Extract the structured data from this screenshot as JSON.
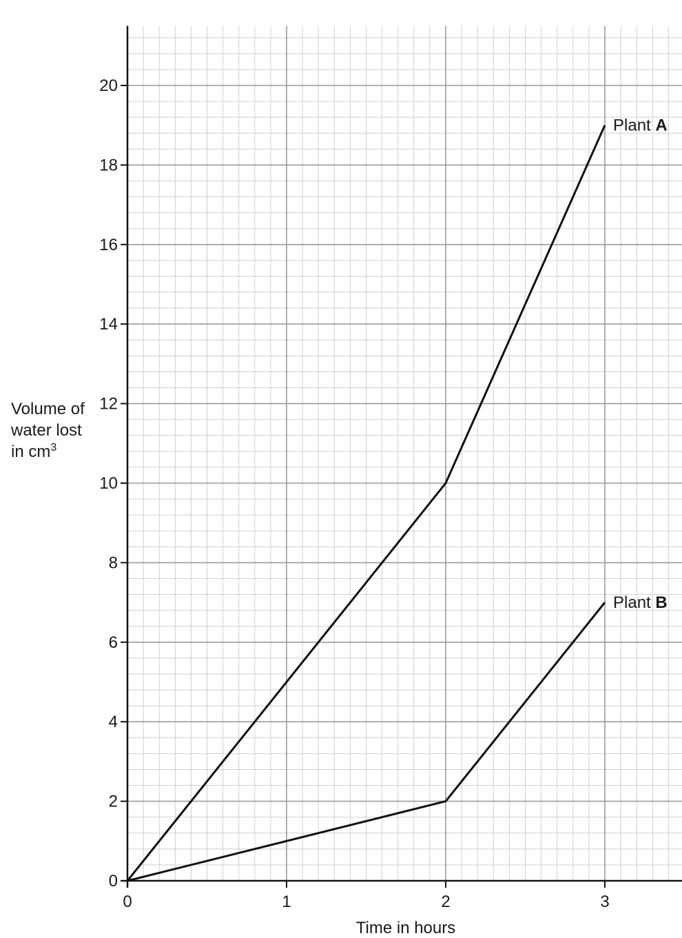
{
  "chart_data": {
    "type": "line",
    "xlabel": "Time in hours",
    "ylabel": "Volume of water lost in cm",
    "ylabel_superscript": "3",
    "xlim": [
      0,
      3.5
    ],
    "ylim": [
      0,
      21.5
    ],
    "x_ticks": [
      0,
      1,
      2,
      3
    ],
    "y_ticks": [
      0,
      2,
      4,
      6,
      8,
      10,
      12,
      14,
      16,
      18,
      20
    ],
    "grid": true,
    "series": [
      {
        "name": "Plant A",
        "name_prefix": "Plant ",
        "name_bold": "A",
        "x": [
          0,
          2,
          3
        ],
        "y": [
          0,
          10,
          19
        ]
      },
      {
        "name": "Plant B",
        "name_prefix": "Plant ",
        "name_bold": "B",
        "x": [
          0,
          2,
          3
        ],
        "y": [
          0,
          2,
          7
        ]
      }
    ],
    "colors": {
      "line": "#111111",
      "grid_major": "#9a9a9a",
      "grid_minor": "#cfcfcf",
      "axis": "#111111"
    }
  }
}
